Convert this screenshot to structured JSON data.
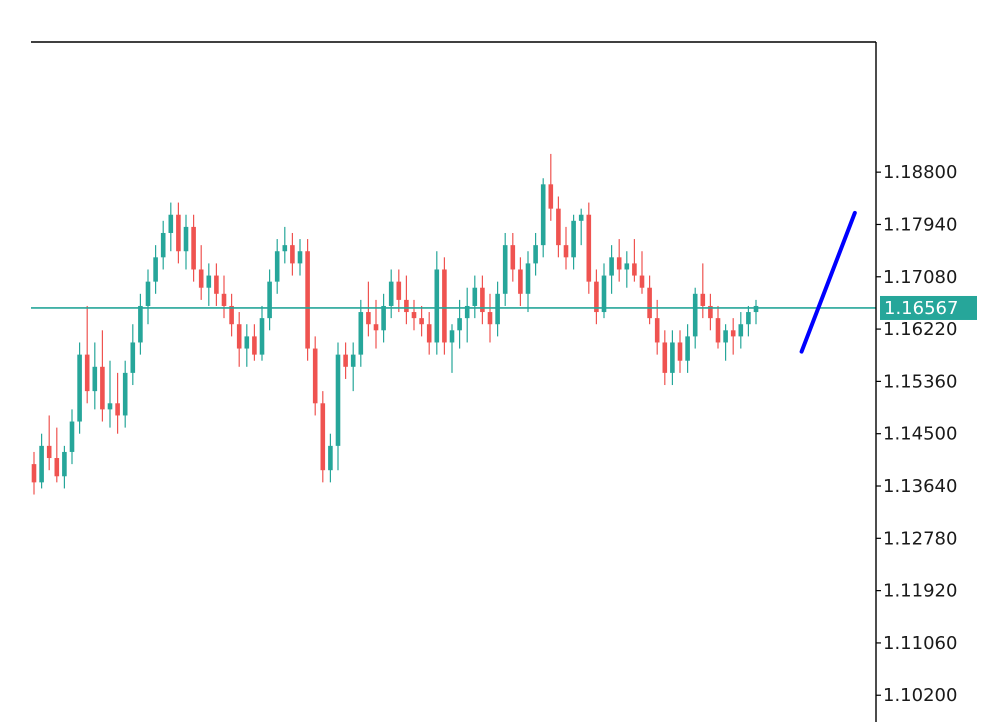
{
  "chart_data": {
    "type": "candlestick",
    "title": "",
    "xlabel": "",
    "ylabel": "",
    "ylim": [
      1.0976,
      1.2094
    ],
    "y_ticks": [
      "1.18800",
      "1.17940",
      "1.17080",
      "1.16220",
      "1.15360",
      "1.14500",
      "1.13640",
      "1.12780",
      "1.11920",
      "1.11060",
      "1.10200"
    ],
    "current_price": {
      "value": 1.16567,
      "label": "1.16567"
    },
    "colors": {
      "bull": "#26a69a",
      "bear": "#ef5350",
      "price_line": "#26a69a",
      "projection": "#0000ff",
      "axis": "#000000"
    },
    "projection_line": {
      "from": {
        "index": 101,
        "price": 1.1585
      },
      "to": {
        "index": 108,
        "price": 1.1813
      }
    },
    "candles": [
      [
        1.14,
        1.142,
        1.135,
        1.137
      ],
      [
        1.137,
        1.145,
        1.136,
        1.143
      ],
      [
        1.143,
        1.148,
        1.139,
        1.141
      ],
      [
        1.141,
        1.146,
        1.137,
        1.138
      ],
      [
        1.138,
        1.143,
        1.136,
        1.142
      ],
      [
        1.142,
        1.149,
        1.14,
        1.147
      ],
      [
        1.147,
        1.16,
        1.145,
        1.158
      ],
      [
        1.158,
        1.166,
        1.15,
        1.152
      ],
      [
        1.152,
        1.16,
        1.149,
        1.156
      ],
      [
        1.156,
        1.162,
        1.147,
        1.149
      ],
      [
        1.149,
        1.157,
        1.146,
        1.15
      ],
      [
        1.15,
        1.155,
        1.145,
        1.148
      ],
      [
        1.148,
        1.157,
        1.146,
        1.155
      ],
      [
        1.155,
        1.163,
        1.153,
        1.16
      ],
      [
        1.16,
        1.168,
        1.158,
        1.166
      ],
      [
        1.166,
        1.172,
        1.163,
        1.17
      ],
      [
        1.17,
        1.176,
        1.168,
        1.174
      ],
      [
        1.174,
        1.18,
        1.172,
        1.178
      ],
      [
        1.178,
        1.183,
        1.175,
        1.181
      ],
      [
        1.181,
        1.183,
        1.173,
        1.175
      ],
      [
        1.175,
        1.181,
        1.172,
        1.179
      ],
      [
        1.179,
        1.181,
        1.17,
        1.172
      ],
      [
        1.172,
        1.176,
        1.167,
        1.169
      ],
      [
        1.169,
        1.173,
        1.166,
        1.171
      ],
      [
        1.171,
        1.173,
        1.166,
        1.168
      ],
      [
        1.168,
        1.171,
        1.164,
        1.166
      ],
      [
        1.166,
        1.168,
        1.161,
        1.163
      ],
      [
        1.163,
        1.165,
        1.156,
        1.159
      ],
      [
        1.159,
        1.163,
        1.156,
        1.161
      ],
      [
        1.161,
        1.163,
        1.157,
        1.158
      ],
      [
        1.158,
        1.166,
        1.157,
        1.164
      ],
      [
        1.164,
        1.172,
        1.162,
        1.17
      ],
      [
        1.17,
        1.177,
        1.168,
        1.175
      ],
      [
        1.175,
        1.179,
        1.173,
        1.176
      ],
      [
        1.176,
        1.178,
        1.171,
        1.173
      ],
      [
        1.173,
        1.177,
        1.171,
        1.175
      ],
      [
        1.175,
        1.177,
        1.157,
        1.159
      ],
      [
        1.159,
        1.161,
        1.148,
        1.15
      ],
      [
        1.15,
        1.152,
        1.137,
        1.139
      ],
      [
        1.139,
        1.145,
        1.137,
        1.143
      ],
      [
        1.143,
        1.16,
        1.139,
        1.158
      ],
      [
        1.158,
        1.16,
        1.154,
        1.156
      ],
      [
        1.156,
        1.16,
        1.152,
        1.158
      ],
      [
        1.158,
        1.167,
        1.156,
        1.165
      ],
      [
        1.165,
        1.17,
        1.161,
        1.163
      ],
      [
        1.163,
        1.167,
        1.159,
        1.162
      ],
      [
        1.162,
        1.168,
        1.16,
        1.166
      ],
      [
        1.166,
        1.172,
        1.164,
        1.17
      ],
      [
        1.17,
        1.172,
        1.165,
        1.167
      ],
      [
        1.167,
        1.171,
        1.163,
        1.165
      ],
      [
        1.165,
        1.167,
        1.162,
        1.164
      ],
      [
        1.164,
        1.166,
        1.161,
        1.163
      ],
      [
        1.163,
        1.165,
        1.158,
        1.16
      ],
      [
        1.16,
        1.175,
        1.158,
        1.172
      ],
      [
        1.172,
        1.174,
        1.158,
        1.16
      ],
      [
        1.16,
        1.163,
        1.155,
        1.162
      ],
      [
        1.162,
        1.167,
        1.159,
        1.164
      ],
      [
        1.164,
        1.169,
        1.16,
        1.166
      ],
      [
        1.166,
        1.171,
        1.164,
        1.169
      ],
      [
        1.169,
        1.171,
        1.163,
        1.165
      ],
      [
        1.165,
        1.168,
        1.16,
        1.163
      ],
      [
        1.163,
        1.17,
        1.161,
        1.168
      ],
      [
        1.168,
        1.178,
        1.166,
        1.176
      ],
      [
        1.176,
        1.178,
        1.17,
        1.172
      ],
      [
        1.172,
        1.174,
        1.166,
        1.168
      ],
      [
        1.168,
        1.175,
        1.165,
        1.173
      ],
      [
        1.173,
        1.178,
        1.171,
        1.176
      ],
      [
        1.176,
        1.187,
        1.174,
        1.186
      ],
      [
        1.186,
        1.191,
        1.18,
        1.182
      ],
      [
        1.182,
        1.184,
        1.174,
        1.176
      ],
      [
        1.176,
        1.179,
        1.172,
        1.174
      ],
      [
        1.174,
        1.181,
        1.172,
        1.18
      ],
      [
        1.18,
        1.182,
        1.176,
        1.181
      ],
      [
        1.181,
        1.183,
        1.168,
        1.17
      ],
      [
        1.17,
        1.172,
        1.163,
        1.165
      ],
      [
        1.165,
        1.173,
        1.164,
        1.171
      ],
      [
        1.171,
        1.176,
        1.168,
        1.174
      ],
      [
        1.174,
        1.177,
        1.17,
        1.172
      ],
      [
        1.172,
        1.175,
        1.169,
        1.173
      ],
      [
        1.173,
        1.177,
        1.17,
        1.171
      ],
      [
        1.171,
        1.175,
        1.168,
        1.169
      ],
      [
        1.169,
        1.171,
        1.163,
        1.164
      ],
      [
        1.164,
        1.167,
        1.158,
        1.16
      ],
      [
        1.16,
        1.162,
        1.153,
        1.155
      ],
      [
        1.155,
        1.162,
        1.153,
        1.16
      ],
      [
        1.16,
        1.162,
        1.155,
        1.157
      ],
      [
        1.157,
        1.163,
        1.155,
        1.161
      ],
      [
        1.161,
        1.169,
        1.159,
        1.168
      ],
      [
        1.168,
        1.173,
        1.164,
        1.166
      ],
      [
        1.166,
        1.168,
        1.162,
        1.164
      ],
      [
        1.164,
        1.166,
        1.159,
        1.16
      ],
      [
        1.16,
        1.163,
        1.157,
        1.162
      ],
      [
        1.162,
        1.164,
        1.158,
        1.161
      ],
      [
        1.161,
        1.165,
        1.159,
        1.163
      ],
      [
        1.163,
        1.166,
        1.161,
        1.165
      ],
      [
        1.165,
        1.167,
        1.163,
        1.166
      ]
    ]
  }
}
